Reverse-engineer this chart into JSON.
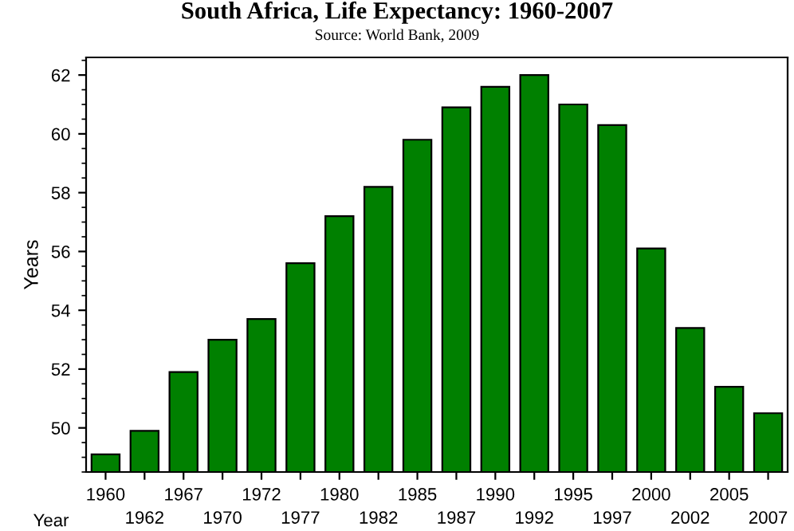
{
  "chart_data": {
    "type": "bar",
    "title": "South Africa, Life Expectancy: 1960-2007",
    "subtitle": "Source: World Bank, 2009",
    "xlabel": "Year",
    "ylabel": "Years",
    "categories": [
      "1960",
      "1962",
      "1967",
      "1970",
      "1972",
      "1977",
      "1980",
      "1982",
      "1985",
      "1987",
      "1990",
      "1992",
      "1995",
      "1997",
      "2000",
      "2002",
      "2005",
      "2007"
    ],
    "values": [
      49.1,
      49.9,
      51.9,
      53.0,
      53.7,
      55.6,
      57.2,
      58.2,
      59.8,
      60.9,
      61.6,
      62.0,
      61.0,
      60.3,
      56.1,
      53.4,
      51.4,
      50.5
    ],
    "color": "#008000",
    "ylim": [
      48.5,
      62.6
    ],
    "yticks": [
      50,
      52,
      54,
      56,
      58,
      60,
      62
    ],
    "grid": false,
    "legend": false
  }
}
